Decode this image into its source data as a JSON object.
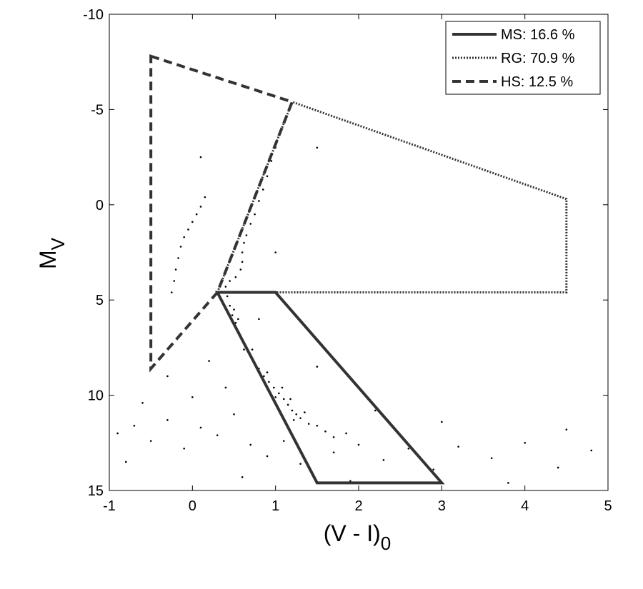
{
  "chart_data": {
    "type": "scatter",
    "x_label": {
      "text": "(V - I)",
      "subscript": "0"
    },
    "y_label": {
      "text": "M",
      "subscript": "V"
    },
    "xlim": [
      -1,
      5
    ],
    "ylim": [
      -10,
      15
    ],
    "y_inverted": true,
    "xticks": [
      -1,
      0,
      1,
      2,
      3,
      4,
      5
    ],
    "yticks": [
      -10,
      -5,
      0,
      5,
      10,
      15
    ],
    "legend_position": "upper right",
    "series": [
      {
        "color": "#000000",
        "x": [
          0.42,
          0.45,
          0.48,
          0.52,
          0.56,
          0.6,
          0.65,
          0.7,
          0.75,
          0.8,
          0.86,
          0.92,
          0.98,
          1.04,
          1.1,
          1.15,
          1.2,
          1.25,
          1.3,
          1.4,
          0.62,
          0.72,
          0.82,
          0.9,
          1.0,
          1.08,
          1.18,
          1.22,
          1.35,
          1.5,
          1.6,
          1.7,
          1.85,
          0.55,
          0.5,
          0.4,
          0.45,
          0.52,
          0.58,
          0.6,
          0.6,
          0.62,
          0.65,
          0.7,
          0.75,
          0.8,
          0.85,
          0.9,
          0.95,
          1.0,
          -0.25,
          -0.22,
          -0.2,
          -0.17,
          -0.14,
          -0.1,
          -0.05,
          0.0,
          0.05,
          0.1,
          0.15,
          -0.9,
          -0.7,
          -0.5,
          -0.3,
          -0.1,
          0.1,
          0.3,
          0.5,
          0.7,
          0.9,
          1.1,
          1.3,
          1.7,
          2.0,
          2.3,
          2.6,
          2.9,
          3.2,
          3.6,
          4.0,
          4.4,
          4.8,
          -0.6,
          0.0,
          0.4,
          -0.3,
          0.2,
          0.8,
          1.5,
          2.2,
          3.0,
          -0.8,
          0.6,
          1.9,
          3.8,
          4.5,
          1.0,
          1.5,
          0.1
        ],
        "y": [
          4.8,
          5.3,
          5.8,
          6.2,
          6.7,
          7.1,
          7.5,
          7.9,
          8.3,
          8.6,
          9.0,
          9.3,
          9.6,
          9.9,
          10.2,
          10.5,
          10.8,
          11.0,
          11.2,
          11.5,
          7.6,
          7.6,
          8.9,
          8.8,
          10.1,
          9.6,
          10.2,
          11.3,
          10.9,
          11.6,
          11.9,
          12.2,
          12.0,
          6.0,
          5.5,
          4.3,
          4.0,
          3.8,
          3.4,
          3.0,
          2.5,
          2.0,
          1.6,
          1.0,
          0.5,
          -0.2,
          -0.8,
          -1.5,
          -2.3,
          -3.0,
          4.6,
          4.0,
          3.4,
          2.8,
          2.2,
          1.7,
          1.3,
          0.9,
          0.5,
          0.1,
          -0.4,
          12.0,
          11.6,
          12.4,
          11.3,
          12.8,
          11.7,
          12.1,
          11.0,
          12.6,
          13.2,
          12.4,
          13.6,
          13.0,
          12.6,
          13.4,
          12.8,
          13.9,
          12.7,
          13.3,
          12.5,
          13.8,
          12.9,
          10.4,
          10.1,
          9.6,
          9.0,
          8.2,
          6.0,
          8.5,
          10.8,
          11.4,
          13.5,
          14.3,
          14.5,
          14.6,
          11.8,
          2.5,
          -3.0,
          -2.5
        ]
      }
    ],
    "regions": [
      {
        "name": "MS: 16.6 %",
        "style": "solid",
        "color": "#333333",
        "x": [
          0.3,
          1.0,
          3.0,
          1.5
        ],
        "y": [
          4.6,
          4.6,
          14.6,
          14.6
        ]
      },
      {
        "name": "RG: 70.9 %",
        "style": "dotted",
        "color": "#333333",
        "x": [
          0.3,
          1.2,
          4.5,
          4.5
        ],
        "y": [
          4.6,
          -5.4,
          -0.3,
          4.6
        ]
      },
      {
        "name": "HS: 12.5 %",
        "style": "dashed",
        "color": "#333333",
        "x": [
          -0.5,
          1.2,
          0.3,
          -0.5
        ],
        "y": [
          -7.8,
          -5.4,
          4.6,
          8.6
        ]
      }
    ]
  }
}
